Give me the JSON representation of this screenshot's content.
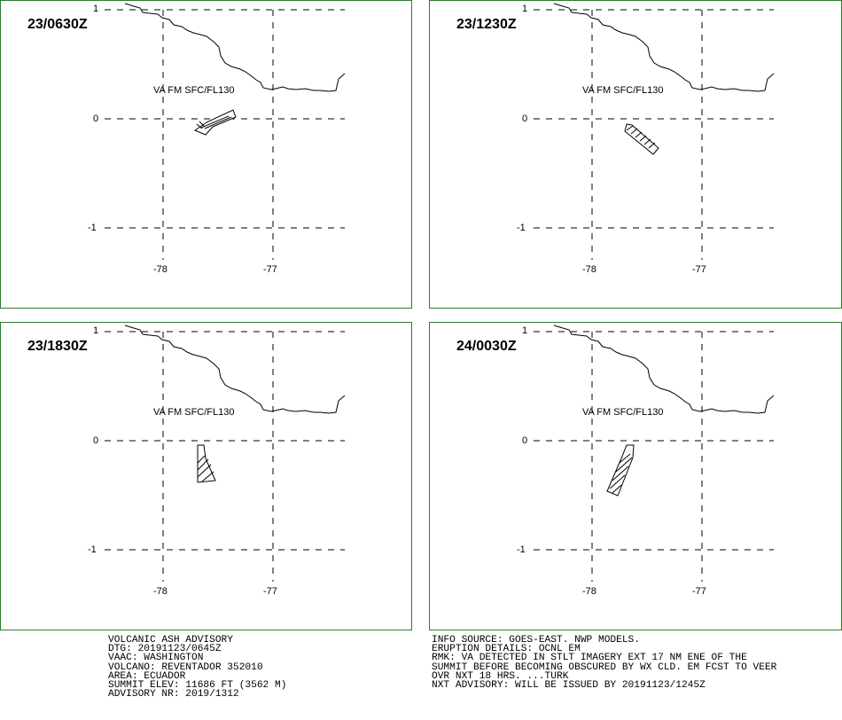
{
  "panels": [
    {
      "valid_time": "23/0630Z",
      "level": "VA FM SFC/FL130",
      "lat_ticks": [
        "1",
        "0",
        "-1"
      ],
      "lon_ticks": [
        "-78",
        "-77"
      ]
    },
    {
      "valid_time": "23/1230Z",
      "level": "VA FM SFC/FL130",
      "lat_ticks": [
        "1",
        "0",
        "-1"
      ],
      "lon_ticks": [
        "-78",
        "-77"
      ]
    },
    {
      "valid_time": "23/1830Z",
      "level": "VA FM SFC/FL130",
      "lat_ticks": [
        "1",
        "0",
        "-1"
      ],
      "lon_ticks": [
        "-78",
        "-77"
      ]
    },
    {
      "valid_time": "24/0030Z",
      "level": "VA FM SFC/FL130",
      "lat_ticks": [
        "1",
        "0",
        "-1"
      ],
      "lon_ticks": [
        "-78",
        "-77"
      ]
    }
  ],
  "advisory": {
    "title": "VOLCANIC ASH ADVISORY",
    "dtg": "DTG: 20191123/0645Z",
    "vaac": "VAAC: WASHINGTON",
    "volcano": "VOLCANO: REVENTADOR 352010",
    "area": "AREA: ECUADOR",
    "summit": "SUMMIT ELEV: 11686 FT (3562 M)",
    "advisory_nr": "ADVISORY NR: 2019/1312",
    "info_source": "INFO SOURCE: GOES-EAST. NWP MODELS.",
    "eruption": "ERUPTION DETAILS: OCNL EM",
    "rmk_1": "RMK: VA DETECTED IN STLT IMAGERY EXT 17 NM ENE OF THE",
    "rmk_2": "SUMMIT BEFORE BECOMING OBSCURED BY WX CLD. EM FCST TO VEER",
    "rmk_3": "OVR NXT 18 HRS. ...TURK",
    "next": "NXT ADVISORY: WILL BE ISSUED BY 20191123/1245Z"
  },
  "colors": {
    "frame": "#2e7d2e",
    "ink": "#000000"
  }
}
